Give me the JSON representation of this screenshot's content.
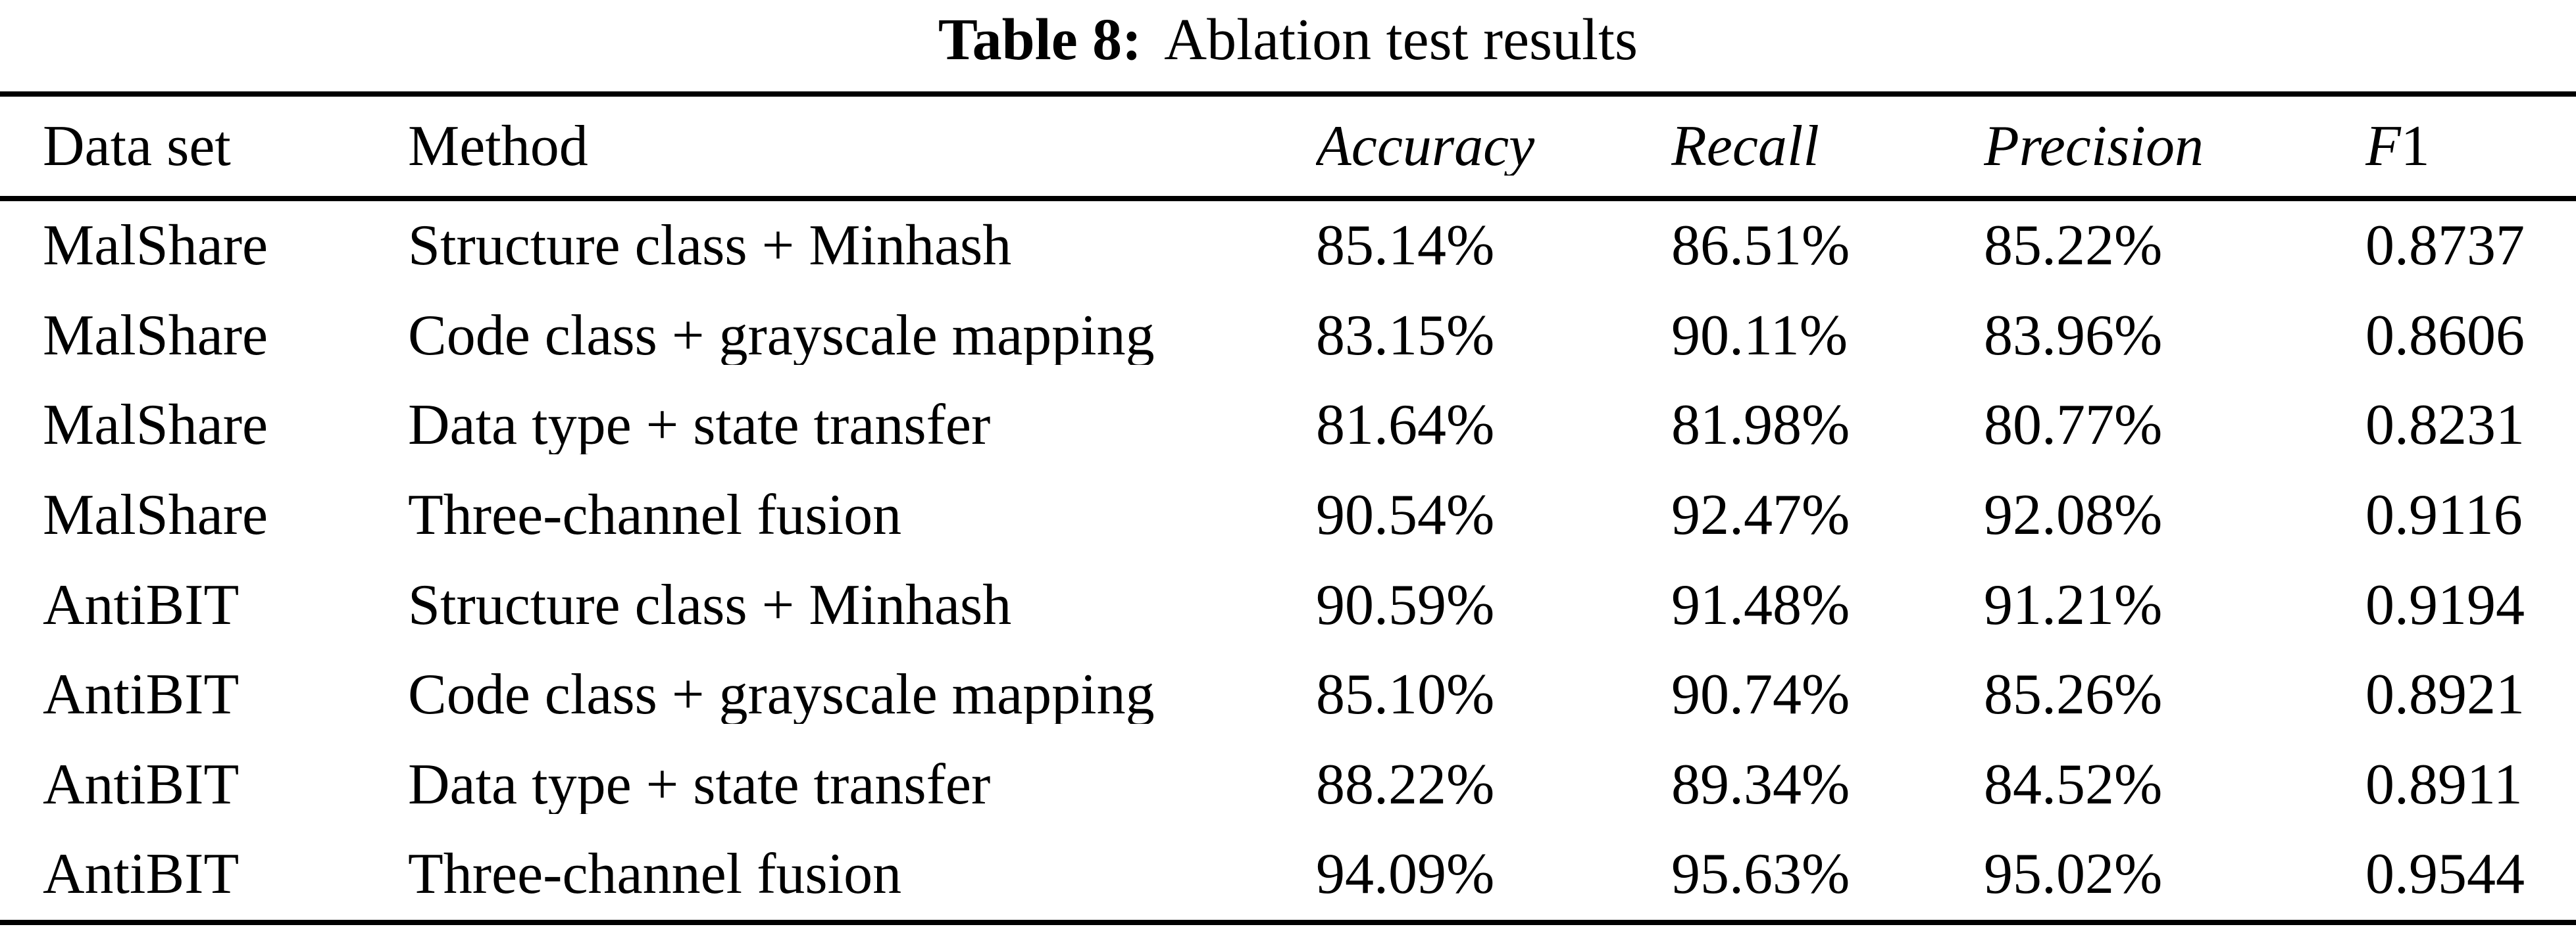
{
  "document": {
    "caption_label": "Table 8:",
    "caption_text": "Ablation test results"
  },
  "table": {
    "columns": [
      {
        "em": "",
        "plain": "Data set"
      },
      {
        "em": "",
        "plain": "Method"
      },
      {
        "em": "Accuracy",
        "plain": ""
      },
      {
        "em": "Recall",
        "plain": ""
      },
      {
        "em": "Precision",
        "plain": ""
      },
      {
        "em": "F",
        "plain": "1"
      }
    ],
    "rows": [
      [
        "MalShare",
        "Structure class + Minhash",
        "85.14%",
        "86.51%",
        "85.22%",
        "0.8737"
      ],
      [
        "MalShare",
        "Code class + grayscale mapping",
        "83.15%",
        "90.11%",
        "83.96%",
        "0.8606"
      ],
      [
        "MalShare",
        "Data type + state transfer",
        "81.64%",
        "81.98%",
        "80.77%",
        "0.8231"
      ],
      [
        "MalShare",
        "Three-channel fusion",
        "90.54%",
        "92.47%",
        "92.08%",
        "0.9116"
      ],
      [
        "AntiBIT",
        "Structure class + Minhash",
        "90.59%",
        "91.48%",
        "91.21%",
        "0.9194"
      ],
      [
        "AntiBIT",
        "Code class + grayscale mapping",
        "85.10%",
        "90.74%",
        "85.26%",
        "0.8921"
      ],
      [
        "AntiBIT",
        "Data type + state transfer",
        "88.22%",
        "89.34%",
        "84.52%",
        "0.8911"
      ],
      [
        "AntiBIT",
        "Three-channel fusion",
        "94.09%",
        "95.63%",
        "95.02%",
        "0.9544"
      ]
    ]
  },
  "colors": {
    "text": "#000000",
    "background": "#ffffff",
    "rule": "#000000"
  }
}
